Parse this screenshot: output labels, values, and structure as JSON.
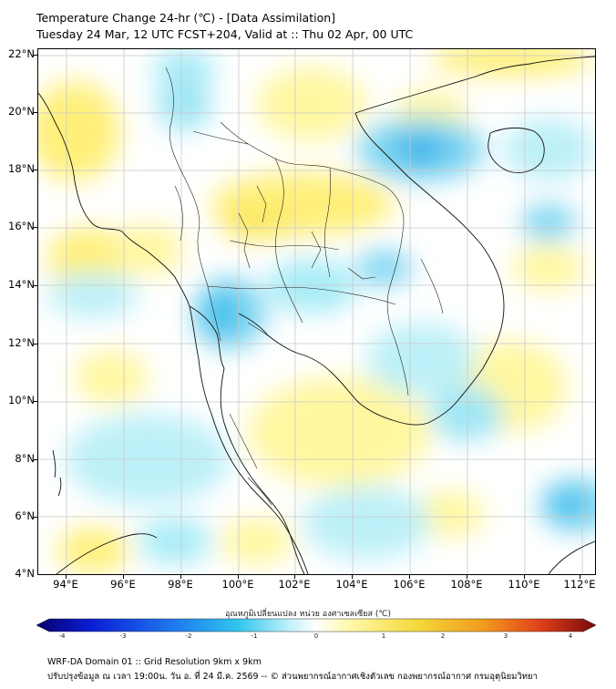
{
  "title_line1": "Temperature Change 24-hr (℃) - [Data Assimilation]",
  "title_line2": "Tuesday 24 Mar, 12 UTC FCST+204, Valid at :: Thu 02 Apr, 00 UTC",
  "map": {
    "lon_range": [
      93.0,
      112.5
    ],
    "lat_range": [
      4.0,
      22.2
    ],
    "lat_labels": [
      "22°N",
      "20°N",
      "18°N",
      "16°N",
      "14°N",
      "12°N",
      "10°N",
      "8°N",
      "6°N",
      "4°N"
    ],
    "lat_values": [
      22,
      20,
      18,
      16,
      14,
      12,
      10,
      8,
      6,
      4
    ],
    "lon_labels": [
      "94°E",
      "96°E",
      "98°E",
      "100°E",
      "102°E",
      "104°E",
      "106°E",
      "108°E",
      "110°E",
      "112°E"
    ],
    "lon_values": [
      94,
      96,
      98,
      100,
      102,
      104,
      106,
      108,
      110,
      112
    ],
    "grid": true
  },
  "colorbar": {
    "label": "อุณหภูมิเปลี่ยนแปลง หน่วย องศาเซลเซียส (℃)",
    "ticks": [
      "-4",
      "-3",
      "-2",
      "-1",
      "0",
      "1",
      "2",
      "3",
      "4"
    ],
    "range": [
      -4,
      4
    ],
    "colors": [
      "#08006e",
      "#0a1fd6",
      "#1f7bf0",
      "#2fc6ee",
      "#9fe6f5",
      "#ffffff",
      "#fff8a8",
      "#f4d83a",
      "#f29a1e",
      "#e0401a",
      "#7a0a0a"
    ]
  },
  "footer_line1": "WRF-DA Domain 01 :: Grid Resolution 9km x 9km",
  "footer_line2": "ปรับปรุงข้อมูล ณ เวลา 19:00น. วัน อ. ที่ 24 มี.ค. 2569 -- © ส่วนพยากรณ์อากาศเชิงตัวเลข กองพยากรณ์อากาศ กรมอุตุนิยมวิทยา"
}
